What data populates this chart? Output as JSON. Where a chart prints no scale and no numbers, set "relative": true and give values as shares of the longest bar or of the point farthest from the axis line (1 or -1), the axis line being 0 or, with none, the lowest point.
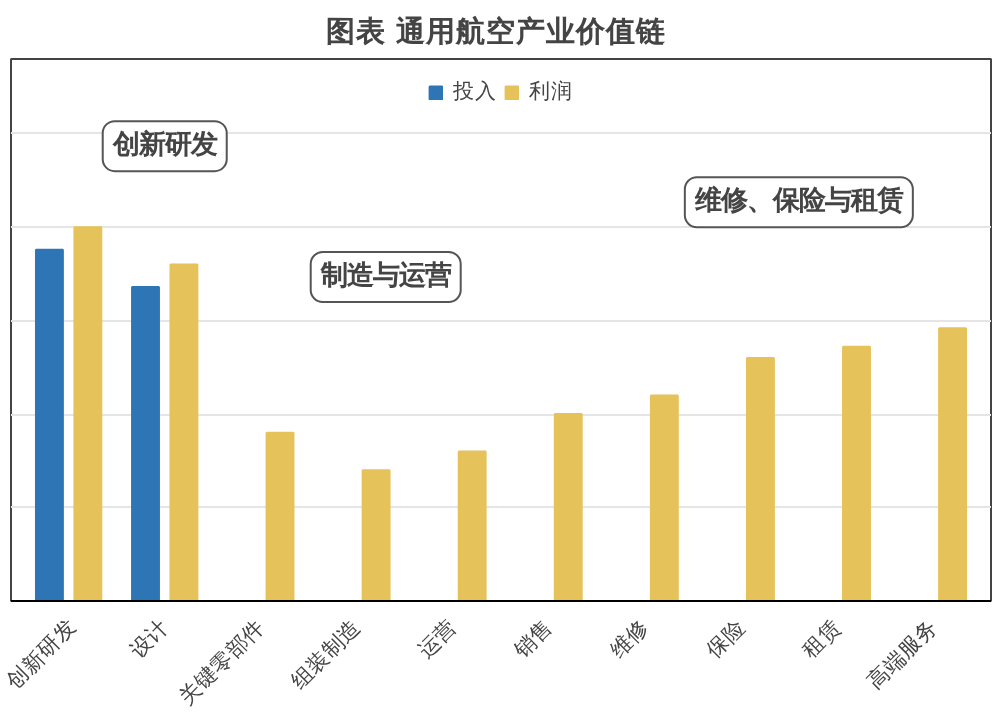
{
  "chart_data": {
    "type": "bar",
    "title": "图表  通用航空产业价值链",
    "relative": true,
    "categories": [
      "创新研发",
      "设计",
      "关键零部件",
      "组装制造",
      "运营",
      "销售",
      "维修",
      "保险",
      "租赁",
      "高端服务"
    ],
    "series": [
      {
        "name": "投入",
        "color": "#2e75b6",
        "values": [
          0.94,
          0.84,
          null,
          null,
          null,
          null,
          null,
          null,
          null,
          null
        ]
      },
      {
        "name": "利润",
        "color": "#e6c25a",
        "values": [
          1,
          0.9,
          0.45,
          0.35,
          0.4,
          0.5,
          0.55,
          0.65,
          0.68,
          0.73
        ]
      }
    ],
    "legend": "top",
    "grid": "y",
    "annotations": [
      "创新研发",
      "制造与运营",
      "维修、保险与租赁"
    ]
  }
}
